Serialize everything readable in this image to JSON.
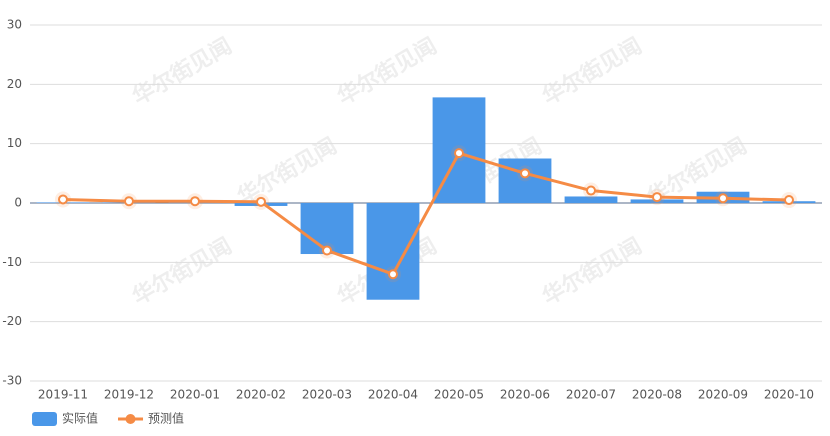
{
  "chart_data": {
    "type": "bar",
    "watermark": "华尔街见闻",
    "categories": [
      "2019-11",
      "2019-12",
      "2020-01",
      "2020-02",
      "2020-03",
      "2020-04",
      "2020-05",
      "2020-06",
      "2020-07",
      "2020-08",
      "2020-09",
      "2020-10"
    ],
    "series": [
      {
        "name": "实际值",
        "type": "bar",
        "color": "#4a97e8",
        "values": [
          0.1,
          0.1,
          0.1,
          -0.5,
          -8.6,
          -16.3,
          17.8,
          7.5,
          1.1,
          0.6,
          1.9,
          0.3
        ]
      },
      {
        "name": "预测值",
        "type": "line",
        "color": "#f58b45",
        "values": [
          0.6,
          0.3,
          0.3,
          0.2,
          -8.0,
          -12.0,
          8.4,
          5.0,
          2.1,
          1.0,
          0.8,
          0.5
        ]
      }
    ],
    "ylim": [
      -30,
      30
    ],
    "yticks": [
      -30,
      -20,
      -10,
      0,
      10,
      20,
      30
    ],
    "grid": true,
    "legend": "bottom-left"
  }
}
